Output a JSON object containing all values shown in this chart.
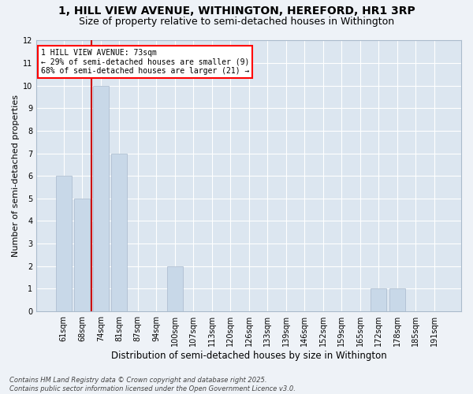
{
  "title1": "1, HILL VIEW AVENUE, WITHINGTON, HEREFORD, HR1 3RP",
  "title2": "Size of property relative to semi-detached houses in Withington",
  "xlabel": "Distribution of semi-detached houses by size in Withington",
  "ylabel": "Number of semi-detached properties",
  "categories": [
    "61sqm",
    "68sqm",
    "74sqm",
    "81sqm",
    "87sqm",
    "94sqm",
    "100sqm",
    "107sqm",
    "113sqm",
    "120sqm",
    "126sqm",
    "133sqm",
    "139sqm",
    "146sqm",
    "152sqm",
    "159sqm",
    "165sqm",
    "172sqm",
    "178sqm",
    "185sqm",
    "191sqm"
  ],
  "values": [
    6,
    5,
    10,
    7,
    0,
    0,
    2,
    0,
    0,
    0,
    0,
    0,
    0,
    0,
    0,
    0,
    0,
    1,
    1,
    0,
    0
  ],
  "bar_color": "#c8d8e8",
  "bar_edge_color": "#a8b8cc",
  "vline_color": "#cc0000",
  "annotation_title": "1 HILL VIEW AVENUE: 73sqm",
  "annotation_line1": "← 29% of semi-detached houses are smaller (9)",
  "annotation_line2": "68% of semi-detached houses are larger (21) →",
  "ylim_max": 12,
  "yticks": [
    0,
    1,
    2,
    3,
    4,
    5,
    6,
    7,
    8,
    9,
    10,
    11,
    12
  ],
  "footer": "Contains HM Land Registry data © Crown copyright and database right 2025.\nContains public sector information licensed under the Open Government Licence v3.0.",
  "bg_color": "#eef2f7",
  "plot_bg_color": "#dce6f0",
  "grid_color": "#ffffff",
  "title1_fontsize": 10,
  "title2_fontsize": 9,
  "xlabel_fontsize": 8.5,
  "ylabel_fontsize": 8,
  "tick_fontsize": 7,
  "footer_fontsize": 6,
  "annot_fontsize": 7
}
